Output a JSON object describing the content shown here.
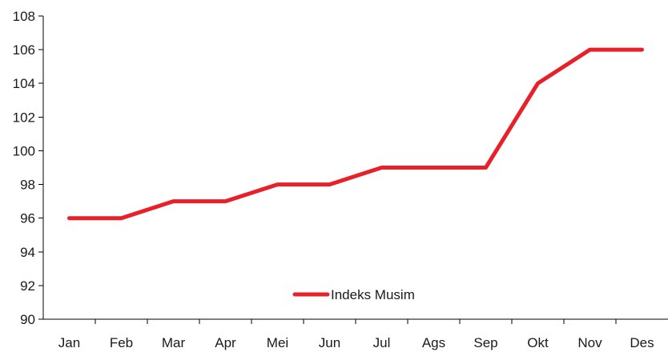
{
  "chart_data": {
    "type": "line",
    "title": "",
    "xlabel": "",
    "ylabel": "",
    "categories": [
      "Jan",
      "Feb",
      "Mar",
      "Apr",
      "Mei",
      "Jun",
      "Jul",
      "Ags",
      "Sep",
      "Okt",
      "Nov",
      "Des"
    ],
    "series": [
      {
        "name": "Indeks Musim",
        "color": "#e8202a",
        "values": [
          96,
          96,
          97,
          97,
          98,
          98,
          99,
          99,
          99,
          104,
          106,
          106
        ]
      }
    ],
    "ylim": [
      90,
      108
    ],
    "yticks": [
      90,
      92,
      94,
      96,
      98,
      100,
      102,
      104,
      106,
      108
    ],
    "grid": false,
    "legend": "bottom-center"
  }
}
